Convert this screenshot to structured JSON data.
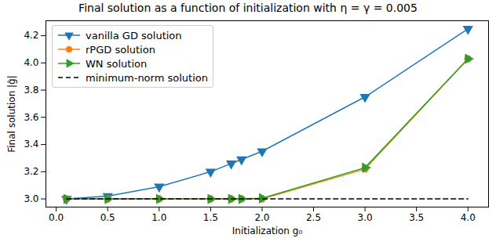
{
  "chart_data": {
    "type": "line",
    "title": "Final solution as a function of initialization with η = γ = 0.005",
    "x_label": "Initialization g₀",
    "y_label": "Final solution |ĝ|",
    "x": [
      0.1,
      0.5,
      1.0,
      1.5,
      1.7,
      1.8,
      2.0,
      3.0,
      4.0
    ],
    "series": [
      {
        "name": "vanilla GD solution",
        "color": "#1f77b4",
        "marker": "triangle-down",
        "line_style": "solid",
        "values": [
          3.0,
          3.02,
          3.09,
          3.2,
          3.26,
          3.29,
          3.35,
          3.75,
          4.25
        ]
      },
      {
        "name": "rPGD solution",
        "color": "#ff7f0e",
        "marker": "circle",
        "line_style": "solid",
        "values": [
          3.0,
          3.0,
          3.0,
          3.0,
          3.0,
          3.0,
          3.0,
          3.22,
          4.03
        ]
      },
      {
        "name": "WN solution",
        "color": "#2ca02c",
        "marker": "triangle-right",
        "line_style": "solid",
        "values": [
          3.0,
          3.0,
          3.0,
          3.0,
          3.0,
          3.0,
          3.005,
          3.23,
          4.03
        ]
      },
      {
        "name": "minimum-norm solution",
        "color": "#000000",
        "marker": "none",
        "line_style": "dashed",
        "values": [
          3.0,
          3.0,
          3.0,
          3.0,
          3.0,
          3.0,
          3.0,
          3.0,
          3.0
        ]
      }
    ],
    "xlim": [
      -0.1,
      4.2
    ],
    "ylim": [
      2.94,
      4.31
    ],
    "xticks": [
      {
        "value": 0,
        "label": "0.0"
      },
      {
        "value": 0.5,
        "label": "0.5"
      },
      {
        "value": 1,
        "label": "1.0"
      },
      {
        "value": 1.5,
        "label": "1.5"
      },
      {
        "value": 2,
        "label": "2.0"
      },
      {
        "value": 2.5,
        "label": "2.5"
      },
      {
        "value": 3,
        "label": "3.0"
      },
      {
        "value": 3.5,
        "label": "3.5"
      },
      {
        "value": 4,
        "label": "4.0"
      }
    ],
    "yticks": [
      {
        "value": 3,
        "label": "3.0"
      },
      {
        "value": 3.2,
        "label": "3.2"
      },
      {
        "value": 3.4,
        "label": "3.4"
      },
      {
        "value": 3.6,
        "label": "3.6"
      },
      {
        "value": 3.8,
        "label": "3.8"
      },
      {
        "value": 4,
        "label": "4.0"
      },
      {
        "value": 4.2,
        "label": "4.2"
      }
    ],
    "grid": false,
    "legend": "upper left"
  }
}
